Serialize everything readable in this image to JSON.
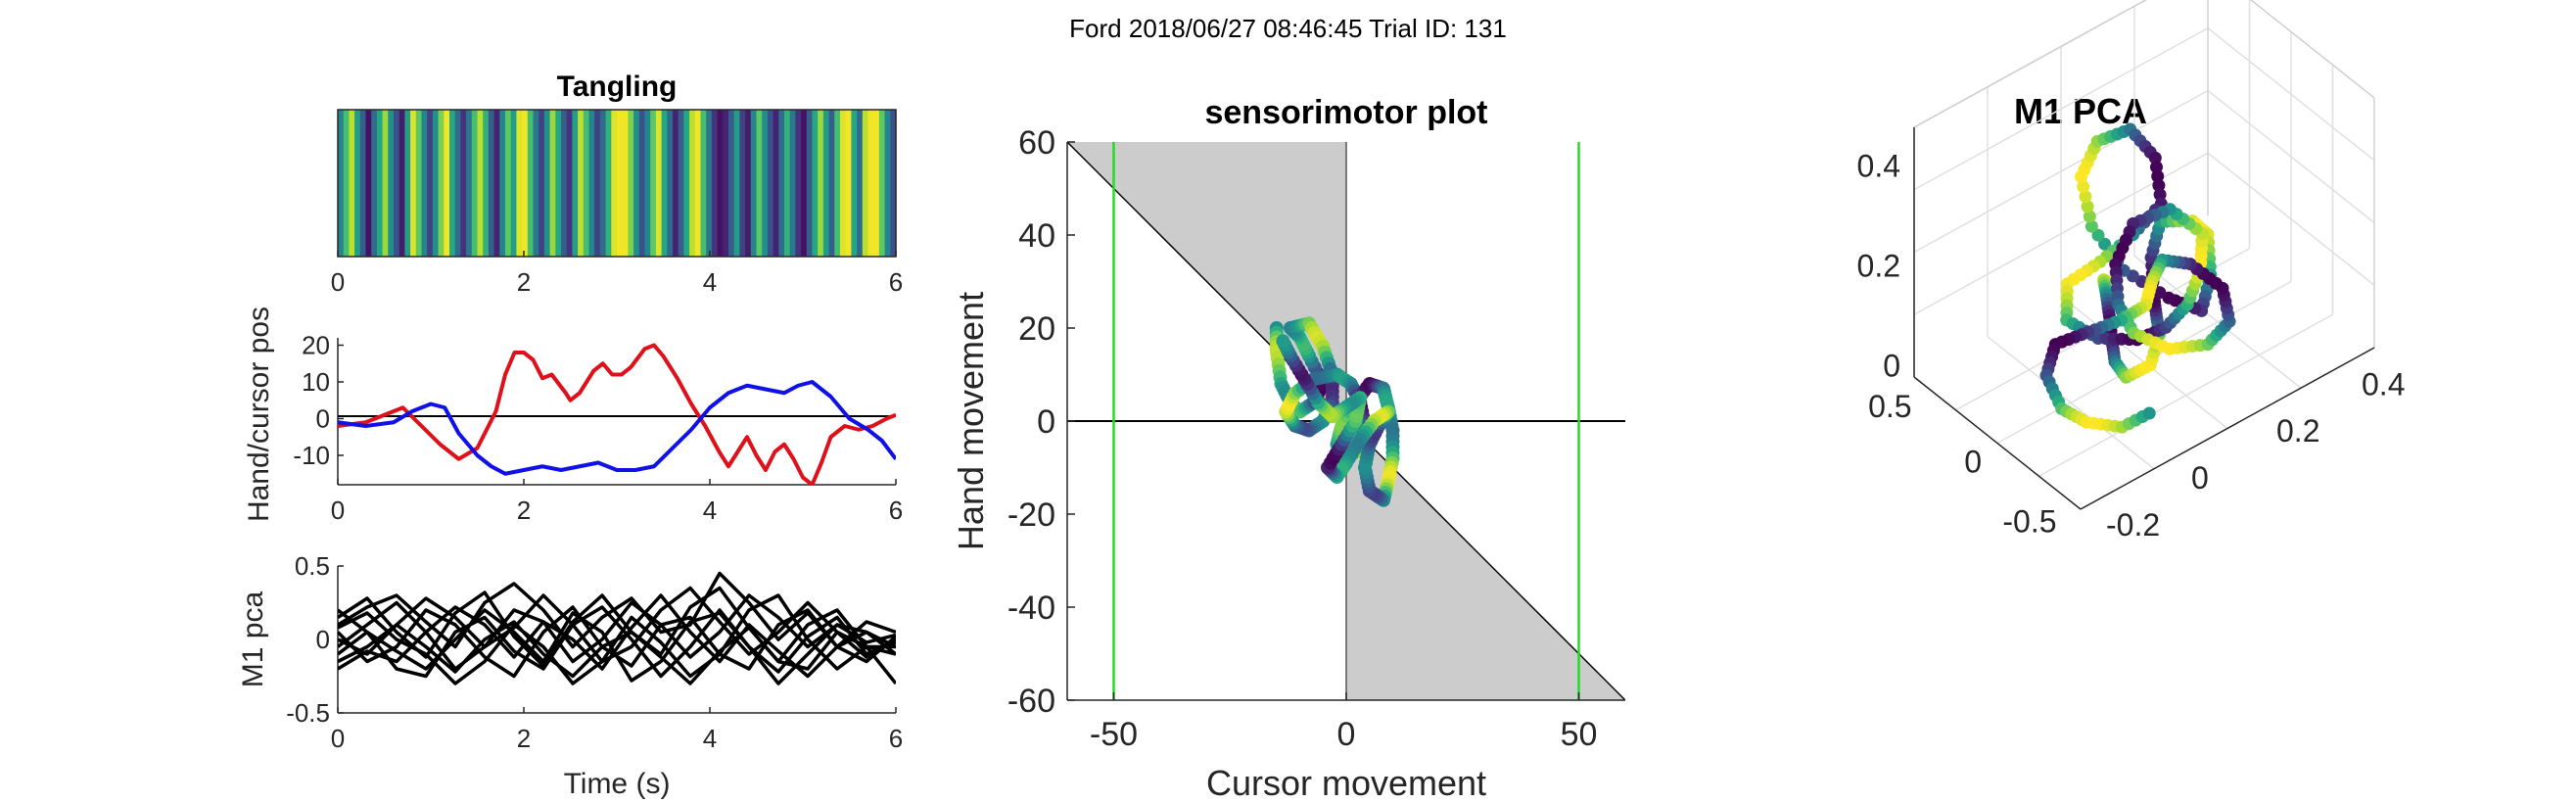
{
  "figure": {
    "suptitle": "Ford 2018/06/27 08:46:45 Trial ID: 131"
  },
  "chart_data": [
    {
      "id": "tangling",
      "type": "heatmap",
      "title": "Tangling",
      "x_ticks": [
        0,
        2,
        4,
        6
      ],
      "xlim": [
        0,
        6
      ],
      "colormap": "viridis",
      "strips": [
        0.45,
        0.7,
        0.9,
        0.55,
        0.3,
        0.05,
        0.35,
        0.6,
        0.85,
        0.5,
        0.25,
        0.08,
        0.55,
        0.95,
        0.75,
        0.45,
        0.2,
        0.5,
        0.8,
        0.98,
        0.6,
        0.35,
        0.15,
        0.4,
        0.7,
        0.9,
        0.65,
        0.3,
        0.1,
        0.45,
        0.75,
        0.55,
        0.95,
        0.98,
        0.7,
        0.4,
        0.2,
        0.5,
        0.85,
        0.6,
        0.3,
        0.15,
        0.55,
        0.9,
        0.7,
        0.45,
        0.2,
        0.35,
        0.65,
        0.95,
        0.98,
        0.98,
        0.8,
        0.5,
        0.25,
        0.45,
        0.75,
        0.95,
        0.6,
        0.35,
        0.1,
        0.3,
        0.6,
        0.9,
        0.98,
        0.7,
        0.4,
        0.15,
        0.05,
        0.1,
        0.3,
        0.55,
        0.2,
        0.08,
        0.45,
        0.75,
        0.5,
        0.25,
        0.1,
        0.35,
        0.65,
        0.4,
        0.15,
        0.05,
        0.3,
        0.6,
        0.85,
        0.55,
        0.3,
        0.7,
        0.95,
        0.98,
        0.6,
        0.35,
        0.9,
        0.98,
        0.98,
        0.75,
        0.45,
        0.25
      ]
    },
    {
      "id": "hand_cursor",
      "type": "line",
      "ylabel": "Hand/cursor pos",
      "xlim": [
        0,
        6
      ],
      "ylim": [
        -18,
        22
      ],
      "x_ticks": [
        0,
        2,
        4,
        6
      ],
      "y_ticks": [
        20,
        10,
        0,
        -10
      ],
      "series": [
        {
          "color": "#e0101a",
          "x": [
            0,
            0.3,
            0.5,
            0.7,
            0.9,
            1.1,
            1.3,
            1.5,
            1.7,
            1.8,
            1.9,
            2.0,
            2.1,
            2.2,
            2.3,
            2.45,
            2.5,
            2.6,
            2.75,
            2.85,
            2.95,
            3.05,
            3.15,
            3.3,
            3.4,
            3.5,
            3.65,
            3.8,
            3.95,
            4.1,
            4.2,
            4.3,
            4.4,
            4.5,
            4.6,
            4.7,
            4.8,
            4.9,
            5.0,
            5.1,
            5.2,
            5.3,
            5.45,
            5.6,
            5.75,
            5.9,
            6.0
          ],
          "y": [
            -2,
            -1,
            1,
            3,
            -2,
            -7,
            -11,
            -8,
            2,
            12,
            18,
            18,
            16,
            11,
            12,
            7,
            5,
            7,
            13,
            15,
            12,
            12,
            14,
            19,
            20,
            17,
            11,
            4,
            -2,
            -9,
            -13,
            -9,
            -5,
            -10,
            -14,
            -9,
            -7,
            -11,
            -16,
            -18,
            -12,
            -5,
            -2,
            -3,
            -2,
            0,
            1
          ]
        },
        {
          "color": "#1010e8",
          "x": [
            0,
            0.3,
            0.6,
            0.8,
            1.0,
            1.15,
            1.3,
            1.5,
            1.65,
            1.8,
            2.0,
            2.2,
            2.4,
            2.6,
            2.8,
            3.0,
            3.2,
            3.4,
            3.6,
            3.8,
            4.0,
            4.2,
            4.4,
            4.6,
            4.8,
            4.95,
            5.1,
            5.3,
            5.5,
            5.7,
            5.85,
            6.0
          ],
          "y": [
            -1,
            -2,
            -1,
            2,
            4,
            3,
            -4,
            -10,
            -13,
            -15,
            -14,
            -13,
            -14,
            -13,
            -12,
            -14,
            -14,
            -13,
            -8,
            -3,
            3,
            7,
            9,
            8,
            7,
            9,
            10,
            6,
            0,
            -3,
            -6,
            -11
          ]
        }
      ]
    },
    {
      "id": "m1_pca_time",
      "type": "line",
      "ylabel": "M1 pca",
      "xlabel": "Time (s)",
      "xlim": [
        0,
        6
      ],
      "ylim": [
        -0.5,
        0.5
      ],
      "x_ticks": [
        0,
        2,
        4,
        6
      ],
      "y_ticks": [
        0.5,
        0,
        -0.5
      ],
      "series_color": "#000000",
      "series": [
        {
          "values": [
            0.15,
            0.28,
            0.05,
            -0.12,
            0.18,
            0.32,
            0.02,
            -0.18,
            0.12,
            0.3,
            0.05,
            -0.1,
            0.22,
            0.35,
            0.08,
            -0.15,
            0.1,
            0.2,
            -0.05,
            -0.1
          ]
        },
        {
          "values": [
            -0.05,
            0.1,
            0.25,
            0.05,
            -0.2,
            -0.05,
            0.2,
            0.12,
            -0.15,
            0.0,
            0.25,
            0.1,
            -0.12,
            0.05,
            0.3,
            0.15,
            -0.05,
            0.1,
            0.05,
            -0.05
          ]
        },
        {
          "values": [
            0.05,
            -0.15,
            -0.05,
            0.2,
            0.1,
            -0.12,
            -0.25,
            0.05,
            0.22,
            -0.05,
            -0.18,
            0.1,
            0.15,
            -0.1,
            -0.2,
            0.1,
            0.2,
            -0.05,
            -0.15,
            0.02
          ]
        },
        {
          "values": [
            0.2,
            0.05,
            -0.2,
            -0.25,
            0.05,
            0.15,
            -0.08,
            -0.2,
            0.1,
            0.22,
            0.0,
            -0.25,
            -0.05,
            0.2,
            -0.05,
            -0.22,
            0.02,
            0.15,
            -0.1,
            -0.02
          ]
        },
        {
          "values": [
            -0.15,
            -0.05,
            0.1,
            0.28,
            0.15,
            -0.05,
            0.08,
            0.3,
            0.1,
            -0.15,
            -0.05,
            0.2,
            0.35,
            0.12,
            -0.1,
            0.05,
            0.25,
            0.05,
            -0.12,
            0.0
          ]
        },
        {
          "values": [
            0.08,
            0.18,
            0.0,
            -0.1,
            -0.3,
            -0.15,
            0.1,
            -0.05,
            -0.3,
            -0.15,
            0.15,
            -0.02,
            -0.25,
            -0.1,
            0.2,
            0.3,
            0.0,
            -0.2,
            -0.05,
            -0.3
          ]
        },
        {
          "values": [
            -0.2,
            -0.08,
            -0.15,
            0.05,
            0.22,
            0.1,
            -0.12,
            0.12,
            0.0,
            -0.2,
            0.08,
            0.3,
            0.05,
            -0.15,
            0.1,
            -0.08,
            -0.25,
            -0.05,
            0.12,
            0.05
          ]
        },
        {
          "values": [
            0.1,
            0.22,
            0.3,
            0.12,
            -0.05,
            0.25,
            0.38,
            0.2,
            -0.05,
            0.15,
            0.28,
            0.05,
            0.1,
            0.45,
            0.25,
            0.0,
            0.18,
            -0.05,
            0.05,
            -0.1
          ]
        },
        {
          "values": [
            0.0,
            -0.1,
            0.1,
            -0.05,
            -0.22,
            0.0,
            0.12,
            -0.1,
            -0.25,
            -0.05,
            0.05,
            -0.12,
            -0.3,
            -0.08,
            0.08,
            -0.15,
            -0.2,
            0.05,
            -0.05,
            -0.05
          ]
        },
        {
          "values": [
            -0.1,
            0.05,
            -0.08,
            -0.2,
            0.0,
            0.2,
            0.05,
            -0.15,
            0.18,
            0.05,
            -0.28,
            -0.15,
            0.12,
            0.18,
            -0.05,
            -0.3,
            -0.1,
            0.1,
            -0.02,
            0.03
          ]
        }
      ]
    },
    {
      "id": "sensorimotor",
      "type": "scatter",
      "title": "sensorimotor plot",
      "xlabel": "Cursor movement",
      "ylabel": "Hand movement",
      "xlim": [
        -60,
        60
      ],
      "ylim": [
        -60,
        60
      ],
      "x_ticks": [
        -50,
        0,
        50
      ],
      "y_ticks": [
        60,
        40,
        20,
        0,
        -20,
        -40,
        -60
      ],
      "shaded_color": "#cccccc",
      "limit_lines": [
        -50,
        50
      ],
      "limit_color": "#22dd22",
      "trajectory": [
        [
          -15,
          20
        ],
        [
          -15,
          15
        ],
        [
          -14,
          8
        ],
        [
          -12,
          4
        ],
        [
          -10,
          2
        ],
        [
          -7,
          4
        ],
        [
          -5,
          8
        ],
        [
          -8,
          14
        ],
        [
          -10,
          18
        ],
        [
          -12,
          20
        ],
        [
          -8,
          21
        ],
        [
          -5,
          16
        ],
        [
          -3,
          10
        ],
        [
          -3,
          4
        ],
        [
          -5,
          0
        ],
        [
          -8,
          -2
        ],
        [
          -11,
          -1
        ],
        [
          -13,
          2
        ],
        [
          -11,
          6
        ],
        [
          -7,
          9
        ],
        [
          -2,
          10
        ],
        [
          1,
          8
        ],
        [
          3,
          4
        ],
        [
          4,
          -1
        ],
        [
          3,
          -6
        ],
        [
          0,
          -8
        ],
        [
          -2,
          -5
        ],
        [
          -1,
          -1
        ],
        [
          2,
          4
        ],
        [
          5,
          8
        ],
        [
          8,
          7
        ],
        [
          9,
          3
        ],
        [
          10,
          -2
        ],
        [
          10,
          -8
        ],
        [
          9,
          -13
        ],
        [
          8,
          -17
        ],
        [
          5,
          -15
        ],
        [
          4,
          -10
        ],
        [
          5,
          -5
        ],
        [
          7,
          -1
        ],
        [
          9,
          2
        ],
        [
          6,
          0
        ],
        [
          3,
          -4
        ],
        [
          0,
          -9
        ],
        [
          -2,
          -12
        ],
        [
          -4,
          -10
        ],
        [
          -1,
          -5
        ],
        [
          2,
          0
        ],
        [
          3,
          5
        ],
        [
          0,
          3
        ],
        [
          -3,
          1
        ],
        [
          -6,
          4
        ],
        [
          -9,
          9
        ],
        [
          -12,
          14
        ],
        [
          -14,
          18
        ]
      ]
    },
    {
      "id": "m1_pca_3d",
      "type": "scatter",
      "title": "M1 PCA",
      "z_ticks": [
        "0.4",
        "0.2",
        "0"
      ],
      "left_axis_ticks": [
        "0.5",
        "0",
        "-0.5"
      ],
      "right_axis_ticks": [
        "-0.2",
        "0",
        "0.2",
        "0.4"
      ],
      "zlim": [
        -0.05,
        0.45
      ],
      "trajectory_3d": [
        [
          0.2,
          -0.3,
          -0.05
        ],
        [
          0.15,
          -0.25,
          0.0
        ],
        [
          0.1,
          -0.15,
          0.03
        ],
        [
          0.05,
          -0.05,
          0.05
        ],
        [
          0.0,
          0.05,
          0.06
        ],
        [
          -0.05,
          0.15,
          0.08
        ],
        [
          -0.08,
          0.25,
          0.1
        ],
        [
          -0.05,
          0.3,
          0.13
        ],
        [
          0.0,
          0.25,
          0.15
        ],
        [
          0.05,
          0.15,
          0.12
        ],
        [
          0.1,
          0.05,
          0.1
        ],
        [
          0.15,
          -0.05,
          0.12
        ],
        [
          0.2,
          -0.1,
          0.15
        ],
        [
          0.22,
          0.0,
          0.18
        ],
        [
          0.2,
          0.1,
          0.2
        ],
        [
          0.15,
          0.2,
          0.18
        ],
        [
          0.1,
          0.25,
          0.15
        ],
        [
          0.05,
          0.2,
          0.18
        ],
        [
          0.0,
          0.1,
          0.22
        ],
        [
          -0.02,
          0.0,
          0.28
        ],
        [
          0.0,
          -0.08,
          0.34
        ],
        [
          0.05,
          -0.1,
          0.38
        ],
        [
          0.1,
          -0.05,
          0.4
        ],
        [
          0.12,
          0.02,
          0.36
        ],
        [
          0.1,
          0.08,
          0.3
        ],
        [
          0.05,
          0.05,
          0.25
        ],
        [
          0.0,
          0.0,
          0.2
        ],
        [
          -0.05,
          -0.05,
          0.16
        ],
        [
          -0.08,
          0.0,
          0.12
        ],
        [
          -0.05,
          0.08,
          0.1
        ],
        [
          0.02,
          0.12,
          0.08
        ],
        [
          0.1,
          0.1,
          0.06
        ],
        [
          0.18,
          0.05,
          0.05
        ],
        [
          0.25,
          -0.02,
          0.06
        ],
        [
          0.3,
          -0.1,
          0.08
        ],
        [
          0.28,
          -0.2,
          0.1
        ],
        [
          0.22,
          -0.25,
          0.08
        ],
        [
          0.15,
          -0.2,
          0.05
        ],
        [
          0.1,
          -0.1,
          0.03
        ],
        [
          0.08,
          0.0,
          0.02
        ],
        [
          0.12,
          0.08,
          0.0
        ],
        [
          0.2,
          0.1,
          -0.02
        ],
        [
          0.28,
          0.05,
          -0.03
        ],
        [
          0.32,
          -0.05,
          -0.02
        ],
        [
          0.3,
          -0.15,
          0.0
        ],
        [
          0.25,
          -0.18,
          0.02
        ],
        [
          0.18,
          -0.1,
          0.04
        ],
        [
          0.12,
          -0.02,
          0.05
        ],
        [
          0.05,
          0.0,
          0.06
        ],
        [
          0.0,
          -0.05,
          0.04
        ],
        [
          -0.05,
          -0.1,
          0.02
        ],
        [
          -0.1,
          -0.05,
          0.0
        ],
        [
          -0.12,
          0.05,
          -0.02
        ],
        [
          -0.1,
          0.12,
          -0.03
        ],
        [
          -0.05,
          0.18,
          -0.04
        ],
        [
          0.02,
          0.2,
          -0.03
        ]
      ]
    }
  ]
}
